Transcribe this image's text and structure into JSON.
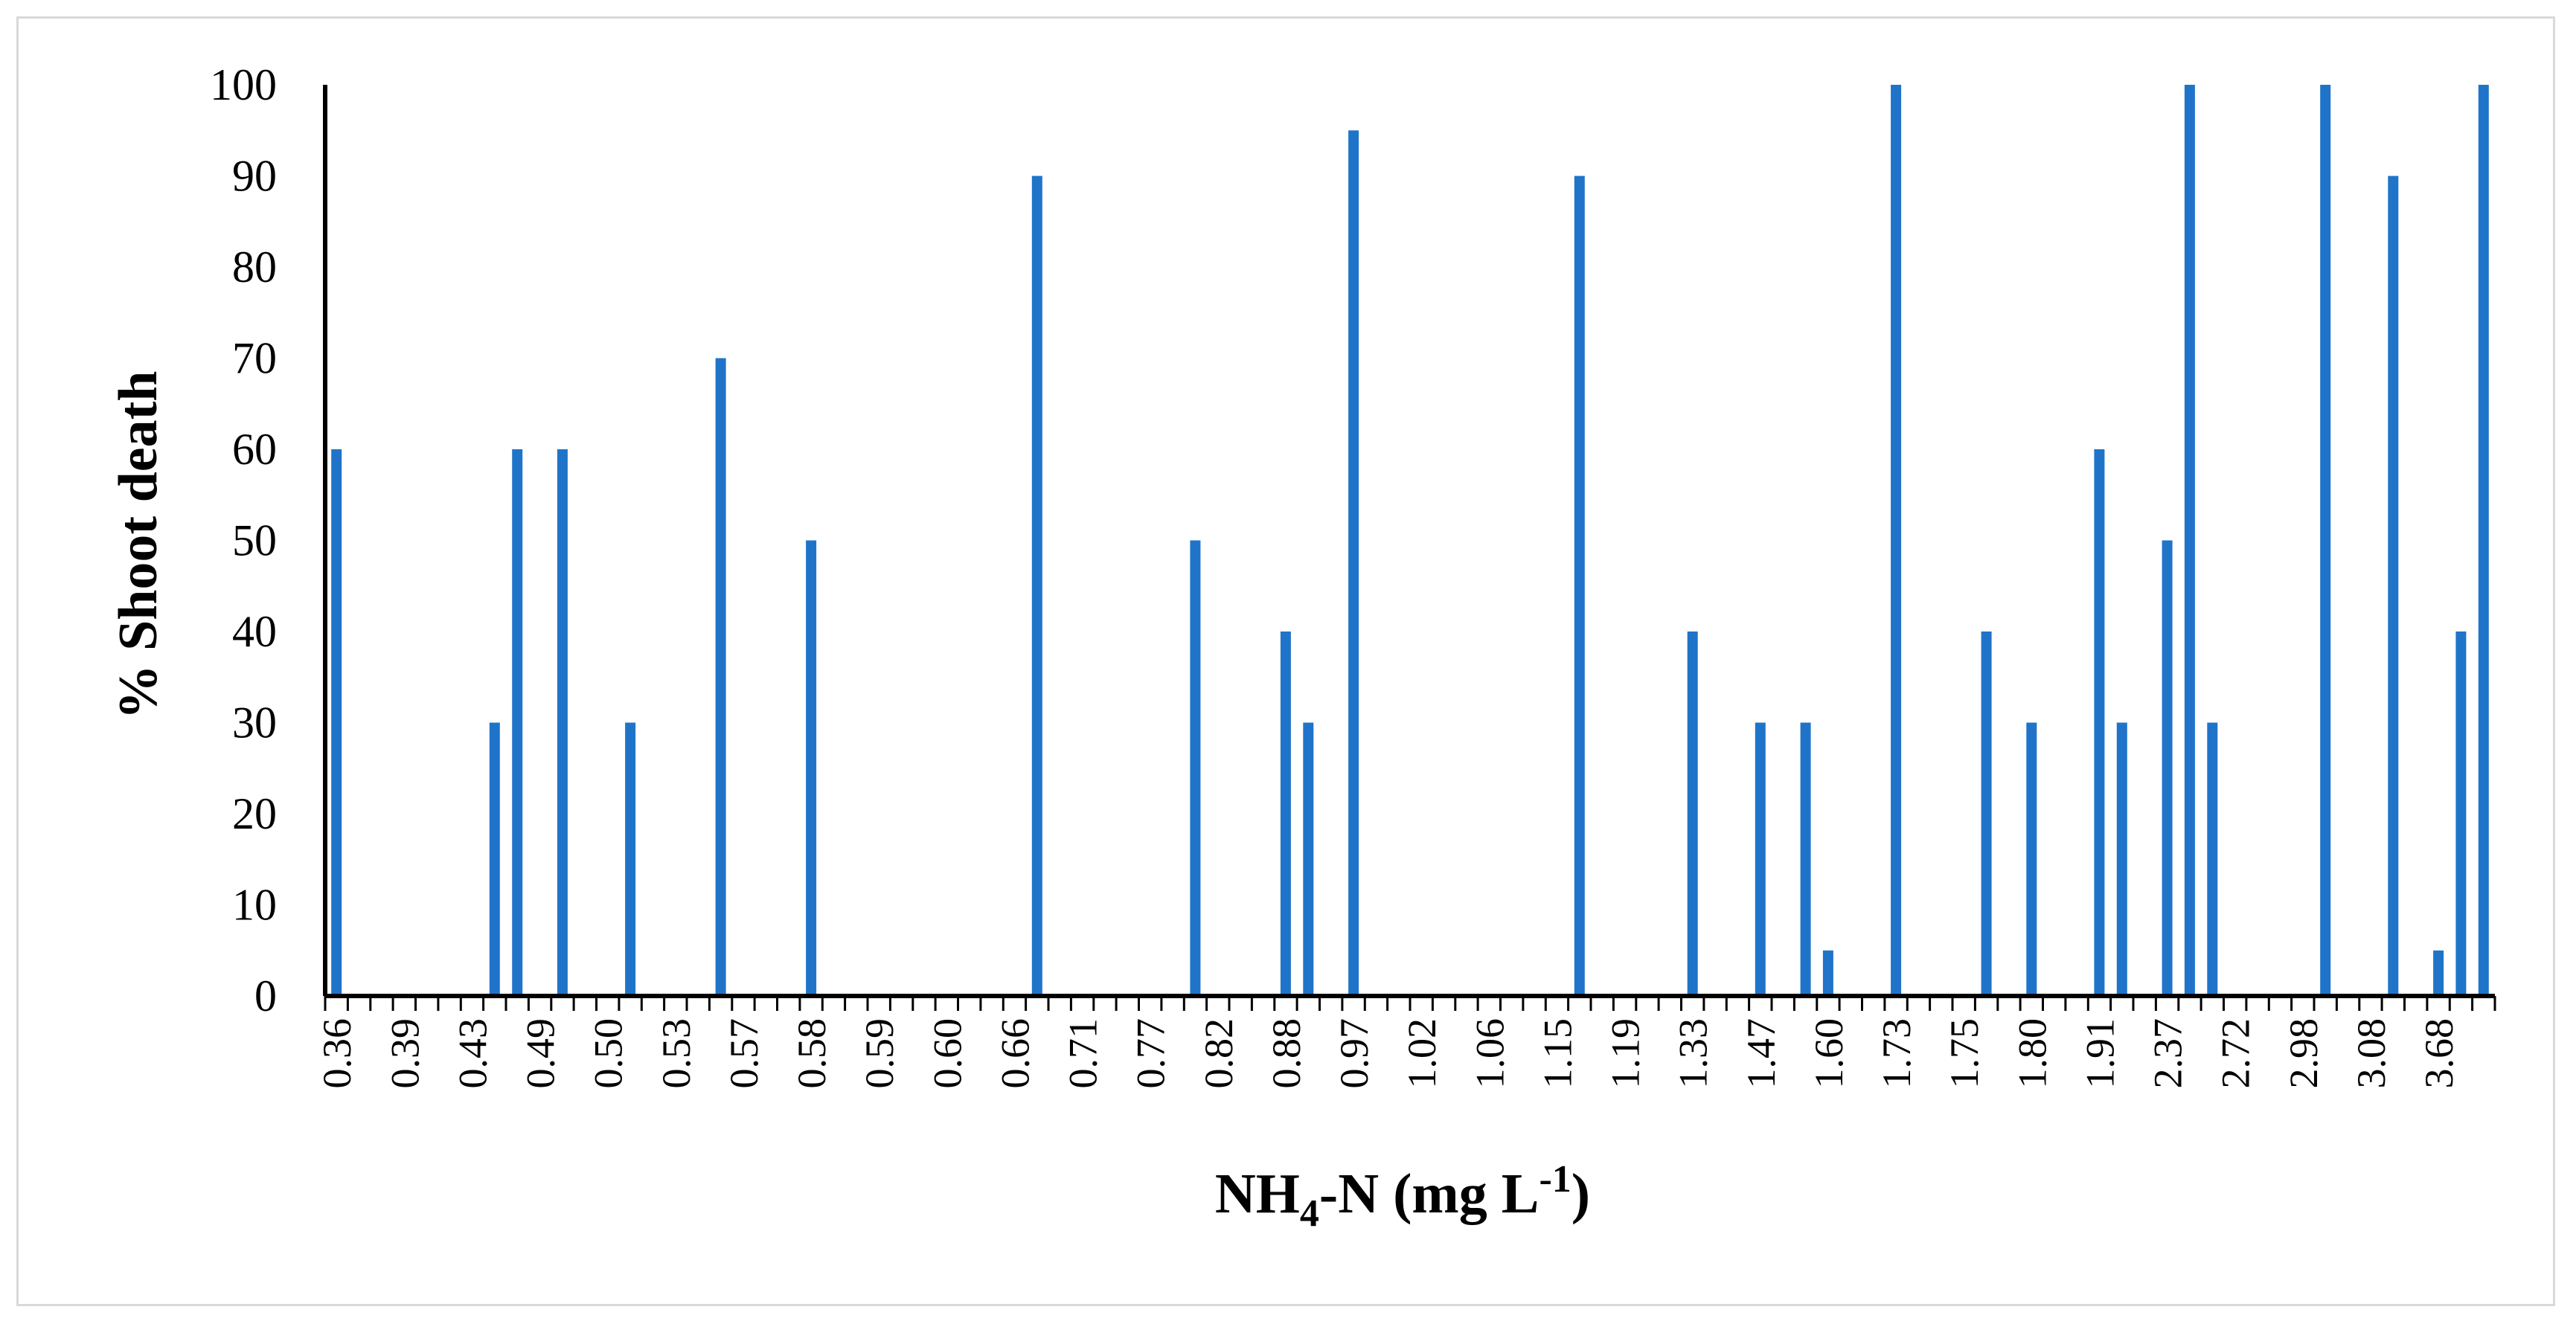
{
  "chart_data": {
    "type": "bar",
    "title": "",
    "ylabel": "% Shoot death",
    "xlabel": {
      "base": "NH",
      "sub": "4",
      "mid": "-N (mg L",
      "sup": "-1",
      "end": ")"
    },
    "ylim": [
      0,
      100
    ],
    "ytick_labels": [
      "0",
      "10",
      "20",
      "30",
      "40",
      "50",
      "60",
      "70",
      "80",
      "90",
      "100"
    ],
    "xtick_labels": [
      "0.36",
      "0.39",
      "0.43",
      "0.49",
      "0.50",
      "0.53",
      "0.57",
      "0.58",
      "0.59",
      "0.60",
      "0.66",
      "0.71",
      "0.77",
      "0.82",
      "0.88",
      "0.97",
      "1.02",
      "1.06",
      "1.15",
      "1.19",
      "1.33",
      "1.47",
      "1.60",
      "1.73",
      "1.75",
      "1.80",
      "1.91",
      "2.37",
      "2.72",
      "2.98",
      "3.08",
      "3.68"
    ],
    "values": [
      60,
      0,
      0,
      0,
      0,
      0,
      0,
      30,
      60,
      0,
      60,
      0,
      0,
      30,
      0,
      0,
      0,
      70,
      0,
      0,
      0,
      50,
      0,
      0,
      0,
      0,
      0,
      0,
      0,
      0,
      0,
      90,
      0,
      0,
      0,
      0,
      0,
      0,
      50,
      0,
      0,
      0,
      40,
      30,
      0,
      95,
      0,
      0,
      0,
      0,
      0,
      0,
      0,
      0,
      0,
      90,
      0,
      0,
      0,
      0,
      40,
      0,
      0,
      30,
      0,
      30,
      5,
      0,
      0,
      100,
      0,
      0,
      0,
      40,
      0,
      30,
      0,
      0,
      60,
      30,
      0,
      50,
      100,
      30,
      0,
      0,
      0,
      0,
      100,
      0,
      0,
      90,
      0,
      5,
      40,
      100
    ],
    "series_color": "#1f74c9",
    "grid": false,
    "legend": "none"
  }
}
